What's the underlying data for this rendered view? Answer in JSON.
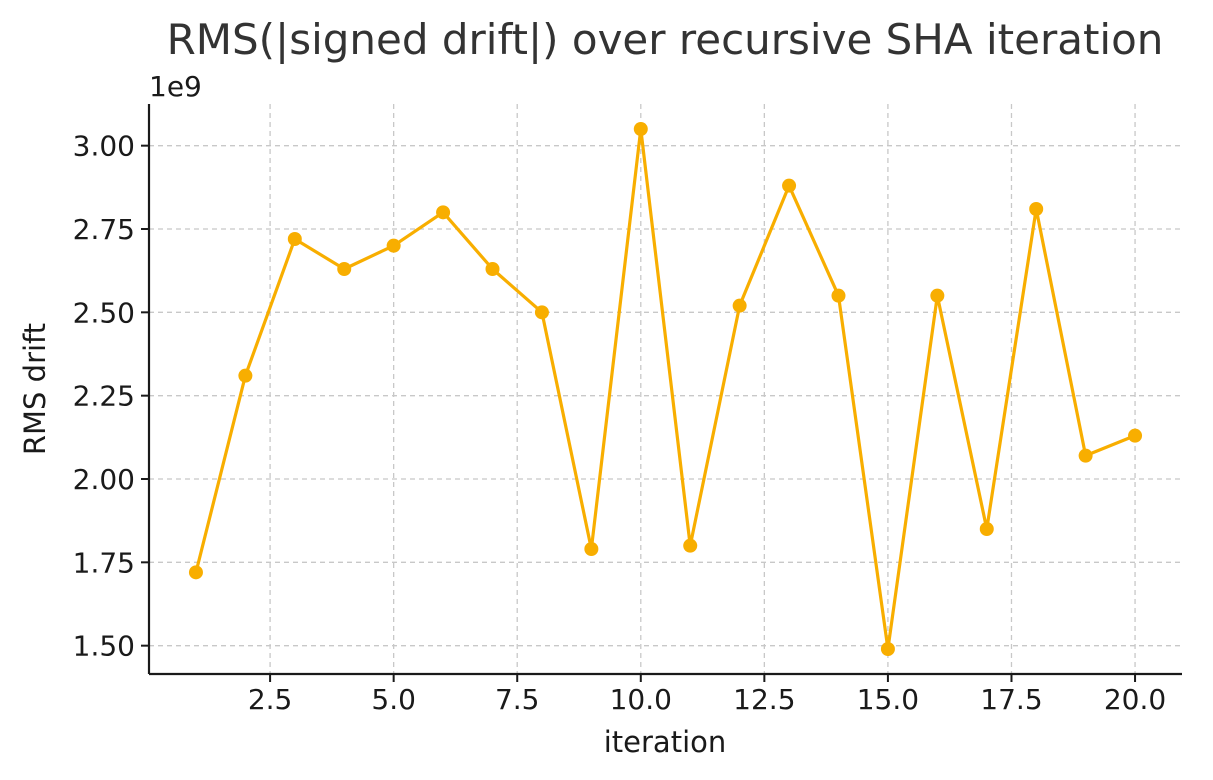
{
  "chart_data": {
    "type": "line",
    "title": "RMS(|signed drift|) over recursive SHA iteration",
    "xlabel": "iteration",
    "ylabel": "RMS drift",
    "y_offset_label": "1e9",
    "xlim": [
      0.05,
      20.95
    ],
    "ylim": [
      1.415,
      3.125
    ],
    "x_ticks": [
      2.5,
      5.0,
      7.5,
      10.0,
      12.5,
      15.0,
      17.5,
      20.0
    ],
    "x_tick_labels": [
      "2.5",
      "5.0",
      "7.5",
      "10.0",
      "12.5",
      "15.0",
      "17.5",
      "20.0"
    ],
    "y_ticks": [
      1.5,
      1.75,
      2.0,
      2.25,
      2.5,
      2.75,
      3.0
    ],
    "y_tick_labels": [
      "1.50",
      "1.75",
      "2.00",
      "2.25",
      "2.50",
      "2.75",
      "3.00"
    ],
    "grid": true,
    "series": [
      {
        "color": "#f8ae00",
        "x": [
          1,
          2,
          3,
          4,
          5,
          6,
          7,
          8,
          9,
          10,
          11,
          12,
          13,
          14,
          15,
          16,
          17,
          18,
          19,
          20
        ],
        "values": [
          1.72,
          2.31,
          2.72,
          2.63,
          2.7,
          2.8,
          2.63,
          2.5,
          1.79,
          3.05,
          1.8,
          2.52,
          2.88,
          2.55,
          1.49,
          2.55,
          1.85,
          2.81,
          2.07,
          2.13
        ]
      }
    ]
  }
}
